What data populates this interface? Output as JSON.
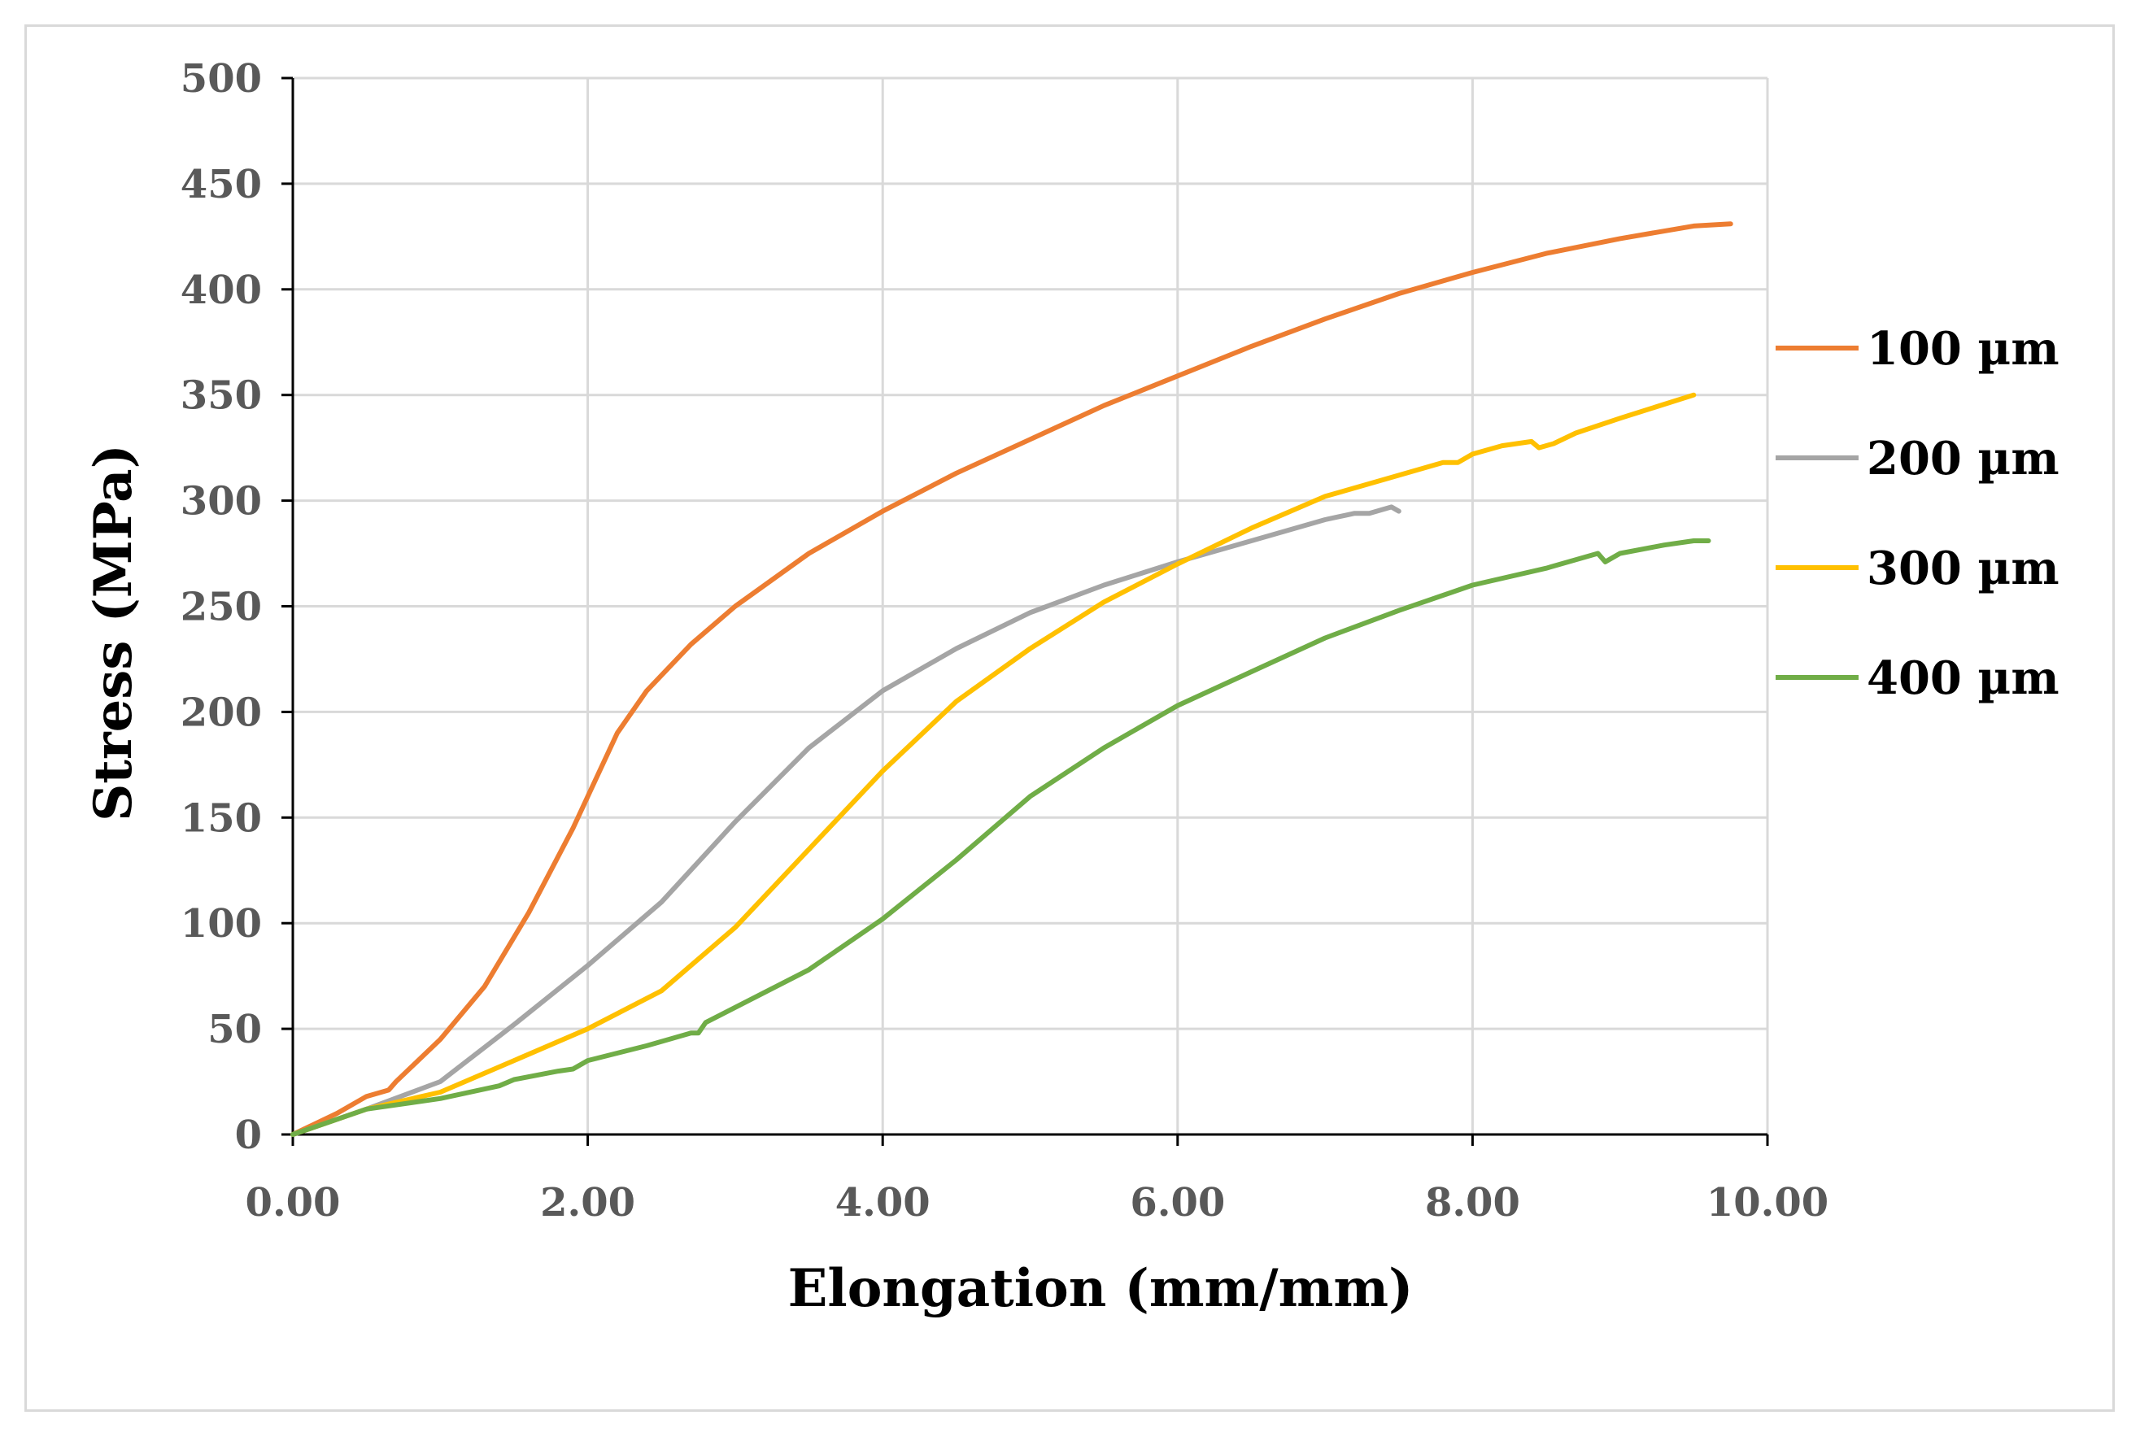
{
  "chart_data": {
    "type": "line",
    "title": "",
    "xlabel": "Elongation (mm/mm)",
    "ylabel": "Stress (MPa)",
    "xlim": [
      0,
      10
    ],
    "ylim": [
      0,
      500
    ],
    "grid": true,
    "legend_position": "right",
    "x_ticks": [
      "0.00",
      "2.00",
      "4.00",
      "6.00",
      "8.00",
      "10.00"
    ],
    "y_ticks": [
      "0",
      "50",
      "100",
      "150",
      "200",
      "250",
      "300",
      "350",
      "400",
      "450",
      "500"
    ],
    "series": [
      {
        "name": "100 µm",
        "color": "#ED7D31",
        "points": [
          [
            0,
            0
          ],
          [
            0.3,
            10
          ],
          [
            0.5,
            18
          ],
          [
            0.65,
            21
          ],
          [
            0.7,
            25
          ],
          [
            1.0,
            45
          ],
          [
            1.3,
            70
          ],
          [
            1.6,
            105
          ],
          [
            1.9,
            145
          ],
          [
            2.2,
            190
          ],
          [
            2.4,
            210
          ],
          [
            2.7,
            232
          ],
          [
            3.0,
            250
          ],
          [
            3.5,
            275
          ],
          [
            4.0,
            295
          ],
          [
            4.5,
            313
          ],
          [
            5.0,
            329
          ],
          [
            5.5,
            345
          ],
          [
            6.0,
            359
          ],
          [
            6.5,
            373
          ],
          [
            7.0,
            386
          ],
          [
            7.5,
            398
          ],
          [
            8.0,
            408
          ],
          [
            8.5,
            417
          ],
          [
            9.0,
            424
          ],
          [
            9.5,
            430
          ],
          [
            9.75,
            431
          ]
        ]
      },
      {
        "name": "200 µm",
        "color": "#A5A5A5",
        "points": [
          [
            0,
            0
          ],
          [
            0.5,
            12
          ],
          [
            1.0,
            25
          ],
          [
            1.5,
            52
          ],
          [
            2.0,
            80
          ],
          [
            2.5,
            110
          ],
          [
            3.0,
            148
          ],
          [
            3.5,
            183
          ],
          [
            4.0,
            210
          ],
          [
            4.5,
            230
          ],
          [
            5.0,
            247
          ],
          [
            5.5,
            260
          ],
          [
            6.0,
            271
          ],
          [
            6.5,
            281
          ],
          [
            7.0,
            291
          ],
          [
            7.2,
            294
          ],
          [
            7.3,
            294
          ],
          [
            7.45,
            297
          ],
          [
            7.5,
            295
          ]
        ]
      },
      {
        "name": "300 µm",
        "color": "#FFC000",
        "points": [
          [
            0,
            0
          ],
          [
            0.5,
            12
          ],
          [
            1.0,
            20
          ],
          [
            1.5,
            35
          ],
          [
            2.0,
            50
          ],
          [
            2.5,
            68
          ],
          [
            3.0,
            98
          ],
          [
            3.5,
            135
          ],
          [
            4.0,
            172
          ],
          [
            4.5,
            205
          ],
          [
            5.0,
            230
          ],
          [
            5.5,
            252
          ],
          [
            6.0,
            270
          ],
          [
            6.5,
            287
          ],
          [
            7.0,
            302
          ],
          [
            7.5,
            312
          ],
          [
            7.8,
            318
          ],
          [
            7.9,
            318
          ],
          [
            8.0,
            322
          ],
          [
            8.2,
            326
          ],
          [
            8.4,
            328
          ],
          [
            8.45,
            325
          ],
          [
            8.55,
            327
          ],
          [
            8.7,
            332
          ],
          [
            9.0,
            339
          ],
          [
            9.5,
            350
          ]
        ]
      },
      {
        "name": "400 µm",
        "color": "#70AD47",
        "points": [
          [
            0,
            0
          ],
          [
            0.5,
            12
          ],
          [
            1.0,
            17
          ],
          [
            1.4,
            23
          ],
          [
            1.5,
            26
          ],
          [
            1.8,
            30
          ],
          [
            1.9,
            31
          ],
          [
            2.0,
            35
          ],
          [
            2.4,
            42
          ],
          [
            2.7,
            48
          ],
          [
            2.75,
            48
          ],
          [
            2.8,
            53
          ],
          [
            3.5,
            78
          ],
          [
            4.0,
            102
          ],
          [
            4.5,
            130
          ],
          [
            5.0,
            160
          ],
          [
            5.5,
            183
          ],
          [
            6.0,
            203
          ],
          [
            6.5,
            219
          ],
          [
            7.0,
            235
          ],
          [
            7.5,
            248
          ],
          [
            8.0,
            260
          ],
          [
            8.5,
            268
          ],
          [
            8.85,
            275
          ],
          [
            8.9,
            271
          ],
          [
            9.0,
            275
          ],
          [
            9.3,
            279
          ],
          [
            9.5,
            281
          ],
          [
            9.6,
            281
          ]
        ]
      }
    ]
  }
}
